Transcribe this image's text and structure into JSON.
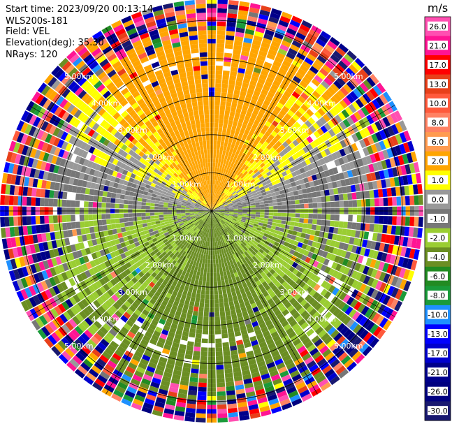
{
  "header": {
    "start_time": "Start time: 2023/09/20 00:13:14",
    "instrument": "WLS200s-181",
    "field": "Field: VEL",
    "elevation": "Elevation(deg): 35.30",
    "nrays": "NRays: 120"
  },
  "chart_data": {
    "type": "ppi",
    "field": "VEL",
    "units": "m/s",
    "elevation_deg": 35.3,
    "nrays": 120,
    "range_rings_km": [
      1.0,
      2.0,
      3.0,
      4.0,
      5.0
    ],
    "range_ring_labels": [
      "1.00km",
      "2.00km",
      "3.00km",
      "4.00km",
      "5.00km"
    ],
    "colorbar": {
      "title": "m/s",
      "ticks": [
        "26.0",
        "21.0",
        "17.0",
        "13.0",
        "10.0",
        "8.0",
        "6.0",
        "2.0",
        "1.0",
        "0.0",
        "-1.0",
        "-2.0",
        "-4.0",
        "-6.0",
        "-8.0",
        "-10.0",
        "-13.0",
        "-17.0",
        "-21.0",
        "-26.0",
        "-30.0"
      ],
      "bands": [
        {
          "min": 26.0,
          "max": 30.0,
          "color": "#ff4fb1"
        },
        {
          "min": 21.0,
          "max": 26.0,
          "color": "#ff1493"
        },
        {
          "min": 17.0,
          "max": 21.0,
          "color": "#ff0000"
        },
        {
          "min": 13.0,
          "max": 17.0,
          "color": "#e8401a"
        },
        {
          "min": 10.0,
          "max": 13.0,
          "color": "#ff5a3c"
        },
        {
          "min": 8.0,
          "max": 10.0,
          "color": "#ff8264"
        },
        {
          "min": 6.0,
          "max": 8.0,
          "color": "#ff9b50"
        },
        {
          "min": 2.0,
          "max": 6.0,
          "color": "#ffa500"
        },
        {
          "min": 1.0,
          "max": 2.0,
          "color": "#ffff00"
        },
        {
          "min": 0.0,
          "max": 1.0,
          "color": "#999999"
        },
        {
          "min": -1.0,
          "max": 0.0,
          "color": "#777777"
        },
        {
          "min": -2.0,
          "max": -1.0,
          "color": "#9acd32"
        },
        {
          "min": -4.0,
          "max": -2.0,
          "color": "#6b8e23"
        },
        {
          "min": -6.0,
          "max": -4.0,
          "color": "#228b22"
        },
        {
          "min": -8.0,
          "max": -6.0,
          "color": "#1a9b3a"
        },
        {
          "min": -10.0,
          "max": -8.0,
          "color": "#1e90ff"
        },
        {
          "min": -13.0,
          "max": -10.0,
          "color": "#0000ff"
        },
        {
          "min": -17.0,
          "max": -13.0,
          "color": "#0000cd"
        },
        {
          "min": -21.0,
          "max": -17.0,
          "color": "#00008b"
        },
        {
          "min": -26.0,
          "max": -21.0,
          "color": "#000080"
        },
        {
          "min": -30.0,
          "max": -26.0,
          "color": "#191970"
        }
      ]
    },
    "sectors": [
      {
        "name": "north",
        "dominant": "2.0 to 6.0 m/s (orange) and 1.0 to 2.0 m/s (yellow)"
      },
      {
        "name": "east-west",
        "dominant": "-1.0 to 0.0 m/s (grey)"
      },
      {
        "name": "south",
        "dominant": "-2.0 to -4.0 m/s (olive green) and -4.0 to -6.0 m/s (green)"
      },
      {
        "name": "outer ranges",
        "dominant": "noise, all colors"
      }
    ]
  }
}
